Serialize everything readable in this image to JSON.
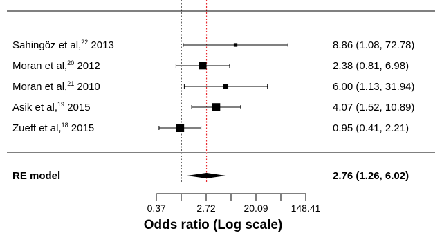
{
  "chart_data": {
    "type": "forest",
    "xlabel": "Odds ratio (Log scale)",
    "x_scale": "log",
    "xlim": [
      0.2,
      400
    ],
    "x_ticks": [
      0.37,
      2.72,
      20.09,
      148.41
    ],
    "x_tick_labels": [
      "0.37",
      "2.72",
      "20.09",
      "148.41"
    ],
    "reference_lines": [
      {
        "value": 1.0,
        "style": "dotted",
        "color": "#000000"
      },
      {
        "value": 2.76,
        "style": "dotted",
        "color": "#e8262b"
      }
    ],
    "studies": [
      {
        "author": "Sahingöz et al,",
        "ref": "22",
        "year": " 2013",
        "or": 8.86,
        "lower": 1.08,
        "upper": 72.78,
        "label": "8.86 (1.08, 72.78)",
        "weight_rel": 0.25
      },
      {
        "author": "Moran et al,",
        "ref": "20",
        "year": " 2012",
        "or": 2.38,
        "lower": 0.81,
        "upper": 6.98,
        "label": "2.38 (0.81, 6.98)",
        "weight_rel": 0.85
      },
      {
        "author": "Moran et al,",
        "ref": "21",
        "year": " 2010",
        "or": 6.0,
        "lower": 1.13,
        "upper": 31.94,
        "label": "6.00 (1.13, 31.94)",
        "weight_rel": 0.45
      },
      {
        "author": "Asik et al,",
        "ref": "19",
        "year": " 2015",
        "or": 4.07,
        "lower": 1.52,
        "upper": 10.89,
        "label": "4.07 (1.52, 10.89)",
        "weight_rel": 0.95
      },
      {
        "author": "Zueff et al,",
        "ref": "18",
        "year": " 2015",
        "or": 0.95,
        "lower": 0.41,
        "upper": 2.21,
        "label": "0.95 (0.41, 2.21)",
        "weight_rel": 1.0
      }
    ],
    "summary": {
      "label": "RE model",
      "or": 2.76,
      "lower": 1.26,
      "upper": 6.02,
      "text": "2.76 (1.26, 6.02)"
    }
  },
  "colors": {
    "ink": "#000000",
    "null_line": "#000000",
    "summary_line": "#e8262b"
  }
}
